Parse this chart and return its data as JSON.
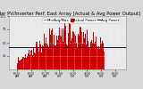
{
  "title": "Solar PV/Inverter Perf. East Array [Actual & Avg Power Output]",
  "bg_color": "#d8d8d8",
  "plot_bg": "#e8e8e8",
  "bar_color": "#cc0000",
  "avg_line_color": "#0000bb",
  "avg_value": 0.42,
  "ylim": [
    0,
    1.0
  ],
  "yticks": [
    0.25,
    0.5,
    0.75,
    1.0
  ],
  "ytick_labels": [
    "25",
    "50",
    "75",
    "100"
  ],
  "num_points": 144,
  "x_labels": [
    "6:0\n0 AM",
    "8:0\n0 AM",
    "10:0\n0 AM",
    "12:0\n0 PM",
    "2:0\n0 PM",
    "4:0\n0 PM",
    "6:0\n0 PM",
    "8:0\n0 PM"
  ],
  "legend_entries": [
    "Min/Avg/Max",
    "Actual Power",
    "Avg Power"
  ],
  "legend_colors": [
    "#888888",
    "#cc0000",
    "#0000bb"
  ],
  "title_fontsize": 3.8,
  "tick_fontsize": 2.5,
  "legend_fontsize": 2.8,
  "left_label": "kW",
  "right_label": "kW"
}
